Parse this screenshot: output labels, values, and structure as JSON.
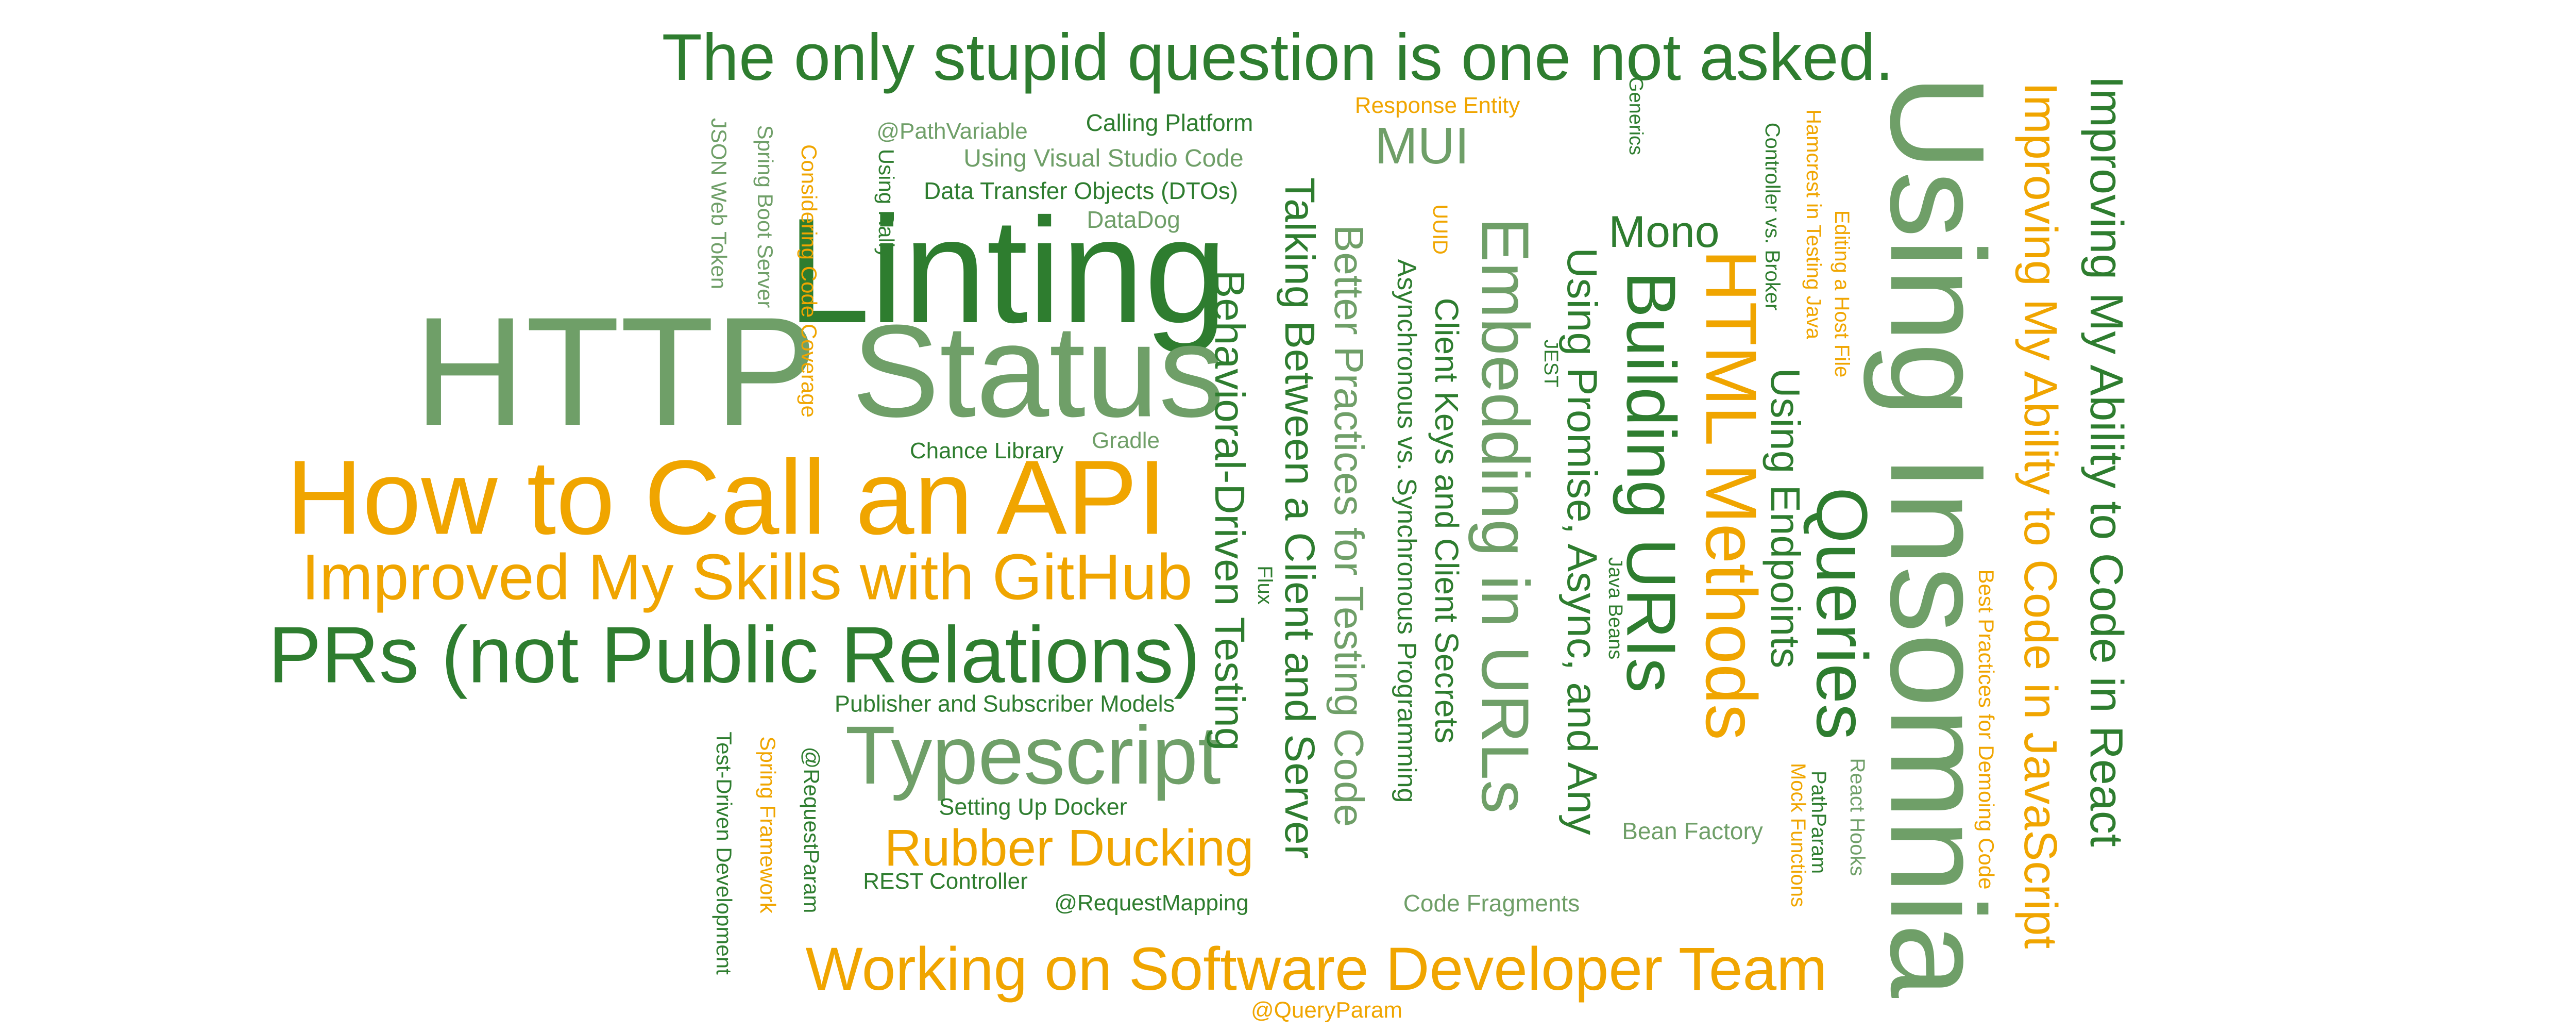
{
  "colors": {
    "dark_green": "#2e7d2f",
    "light_green": "#6f9f68",
    "orange": "#f0a500",
    "background": "#ffffff"
  },
  "words": {
    "quote": "The only stupid question is one not asked.",
    "linting": "Linting",
    "http": "HTTP",
    "status": "Status",
    "call_api": "How to Call an API",
    "github": "Improved My Skills with GitHub",
    "prs": "PRs (not Public Relations)",
    "typescript": "Typescript",
    "rubber_ducking": "Rubber Ducking",
    "working_team": "Working on Software Developer Team",
    "path_variable": "@PathVariable",
    "calling_platform": "Calling Platform",
    "using_vs_code": "Using Visual Studio Code",
    "dtos": "Data Transfer Objects (DTOs)",
    "datadog": "DataDog",
    "using_rally": "Using Rally",
    "chance_library": "Chance Library",
    "gradle": "Gradle",
    "response_entity": "Response Entity",
    "mui": "MUI",
    "mono": "Mono",
    "generics": "Generics",
    "jest": "JEST",
    "java_beans": "Java Beans",
    "flux": "Flux",
    "uuid": "UUID",
    "publisher_subscriber": "Publisher and Subscriber Models",
    "setting_up_docker": "Setting Up Docker",
    "rest_controller": "REST Controller",
    "request_mapping": "@RequestMapping",
    "query_param": "@QueryParam",
    "code_fragments": "Code Fragments",
    "bean_factory": "Bean Factory",
    "json_web_token": "JSON Web Token",
    "spring_boot_server": "Spring Boot Server",
    "code_coverage": "Considering Code Coverage",
    "test_driven": "Test-Driven Development",
    "spring_framework": "Spring Framework",
    "request_param": "@RequestParam",
    "talking_client_server": "Talking Between a Client and Server",
    "bdd": "Behavioral-Driven Testing",
    "testing_code": "Better Practices for Testing Code",
    "async_programming": "Asynchronous vs. Synchronous Programming",
    "client_keys": "Client Keys and Client Secrets",
    "embedding_urls": "Embedding in URLs",
    "promise_async": "Using Promise, Async, and Any",
    "building_uris": "Building URIs",
    "html_methods": "HTML Methods",
    "using_endpoints": "Using Endpoints",
    "controller_broker": "Controller vs. Broker",
    "hamcrest": "Hamcrest in Testing Java",
    "host_file": "Editing a Host File",
    "queries": "Queries",
    "path_param": "PathParam",
    "mock_functions": "Mock Functions",
    "react_hooks": "React Hooks",
    "using_insomnia": "Using Insomnia",
    "demoing_code": "Best Practices for Demoing Code",
    "ability_js": "Improving My Ability to Code in JavaScript",
    "ability_react": "Improving My Ability to Code in React"
  }
}
